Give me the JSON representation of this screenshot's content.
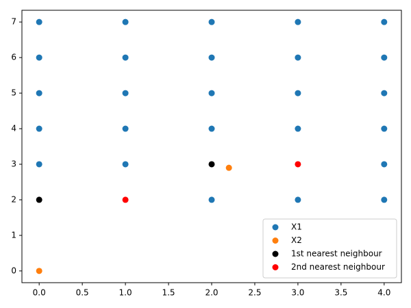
{
  "chart_data": {
    "type": "scatter",
    "xlim": [
      -0.2,
      4.2
    ],
    "ylim": [
      -0.33,
      7.33
    ],
    "xticks": [
      {
        "value": 0,
        "label": "0.0"
      },
      {
        "value": 0.5,
        "label": "0.5"
      },
      {
        "value": 1,
        "label": "1.0"
      },
      {
        "value": 1.5,
        "label": "1.5"
      },
      {
        "value": 2,
        "label": "2.0"
      },
      {
        "value": 2.5,
        "label": "2.5"
      },
      {
        "value": 3,
        "label": "3.0"
      },
      {
        "value": 3.5,
        "label": "3.5"
      },
      {
        "value": 4,
        "label": "4.0"
      }
    ],
    "yticks": [
      0,
      1,
      2,
      3,
      4,
      5,
      6,
      7
    ],
    "legend": "lower right",
    "series": [
      {
        "name": "X1",
        "color": "#1f77b4",
        "x": [
          0,
          0,
          0,
          0,
          0,
          1,
          1,
          1,
          1,
          1,
          2,
          2,
          2,
          2,
          2,
          3,
          3,
          3,
          3,
          3,
          4,
          4,
          4,
          4,
          4,
          4
        ],
        "values": [
          7,
          6,
          5,
          4,
          3,
          7,
          6,
          5,
          4,
          3,
          7,
          6,
          5,
          4,
          2,
          7,
          6,
          5,
          4,
          2,
          7,
          6,
          5,
          4,
          3,
          2
        ]
      },
      {
        "name": "X2",
        "color": "#ff7f0e",
        "x": [
          0,
          2.2
        ],
        "values": [
          0,
          2.9
        ]
      },
      {
        "name": "1st nearest neighbour",
        "color": "#000000",
        "x": [
          0,
          2
        ],
        "values": [
          2,
          3
        ]
      },
      {
        "name": "2nd nearest neighbour",
        "color": "#ff0000",
        "x": [
          1,
          3
        ],
        "values": [
          2,
          3
        ]
      }
    ]
  }
}
